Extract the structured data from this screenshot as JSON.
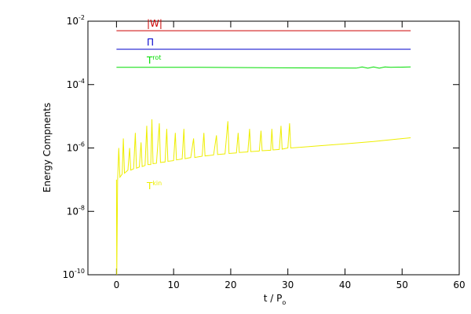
{
  "chart_data": {
    "type": "line",
    "log_y": true,
    "x_label": "t / P",
    "x_label_subscript": "o",
    "y_label": "Energy Compnents",
    "xlim": [
      -5,
      60
    ],
    "xticks": [
      0,
      10,
      20,
      30,
      40,
      50,
      60
    ],
    "ylim": [
      1e-10,
      0.01
    ],
    "yticks": [
      {
        "value": 1e-10,
        "label": "10",
        "exponent": "-10"
      },
      {
        "value": 1e-08,
        "label": "10",
        "exponent": "-8"
      },
      {
        "value": 1e-06,
        "label": "10",
        "exponent": "-6"
      },
      {
        "value": 0.0001,
        "label": "10",
        "exponent": "-4"
      },
      {
        "value": 0.01,
        "label": "10",
        "exponent": "-2"
      }
    ],
    "series": [
      {
        "name": "|W|",
        "color": "#cc0000",
        "x": [
          0,
          51.5
        ],
        "values": [
          0.005,
          0.005
        ]
      },
      {
        "name": "Π",
        "color": "#0000cc",
        "x": [
          0,
          51.5
        ],
        "values": [
          0.0013,
          0.0013
        ]
      },
      {
        "name": "T",
        "name_superscript": "rot",
        "color": "#00dd00",
        "x": [
          0,
          14,
          42,
          43,
          44,
          45,
          46,
          47,
          48,
          51.5
        ],
        "values": [
          0.00035,
          0.00035,
          0.00033,
          0.00036,
          0.00033,
          0.00036,
          0.00033,
          0.00036,
          0.00035,
          0.00036
        ]
      },
      {
        "name": "T",
        "name_superscript": "kin",
        "color": "#eeee00",
        "x": [
          0,
          0.05,
          0.2,
          0.4,
          0.6,
          1,
          1.2,
          1.4,
          2,
          2.3,
          2.5,
          3,
          3.3,
          3.5,
          4,
          4.3,
          4.5,
          5,
          5.3,
          5.5,
          6,
          6.2,
          6.4,
          7,
          7.5,
          7.7,
          8.5,
          8.8,
          9,
          10,
          10.3,
          10.5,
          11.5,
          11.8,
          12,
          13,
          13.5,
          13.7,
          15,
          15.3,
          15.5,
          17,
          17.5,
          17.7,
          19,
          19.5,
          19.7,
          21,
          21.3,
          21.5,
          23,
          23.3,
          23.5,
          25,
          25.3,
          25.5,
          27,
          27.2,
          27.4,
          28.5,
          28.8,
          29,
          30,
          30.3,
          30.5,
          35,
          40,
          45,
          51.5
        ],
        "values": [
          1e-07,
          1e-10,
          1e-07,
          1e-06,
          1.2e-07,
          1.5e-07,
          2e-06,
          1.6e-07,
          2e-07,
          1e-06,
          2e-07,
          2.2e-07,
          3e-06,
          2.3e-07,
          2.5e-07,
          1.5e-06,
          2.6e-07,
          2.8e-07,
          5e-06,
          3e-07,
          3e-07,
          8e-06,
          3.2e-07,
          3.3e-07,
          6e-06,
          3.5e-07,
          3.6e-07,
          4e-06,
          3.8e-07,
          4e-07,
          3e-06,
          4.2e-07,
          4.5e-07,
          4e-06,
          4.6e-07,
          5e-07,
          2e-06,
          5e-07,
          5.5e-07,
          3e-06,
          5.6e-07,
          6e-07,
          2.5e-06,
          6.2e-07,
          6.5e-07,
          7e-06,
          6.7e-07,
          7e-07,
          3e-06,
          7.2e-07,
          7.5e-07,
          4e-06,
          7.7e-07,
          8e-07,
          3.5e-06,
          8.2e-07,
          8.5e-07,
          4e-06,
          8.7e-07,
          9e-07,
          5e-06,
          9.2e-07,
          1e-06,
          6e-06,
          1e-06,
          1.15e-06,
          1.35e-06,
          1.6e-06,
          2.1e-06
        ]
      }
    ]
  }
}
